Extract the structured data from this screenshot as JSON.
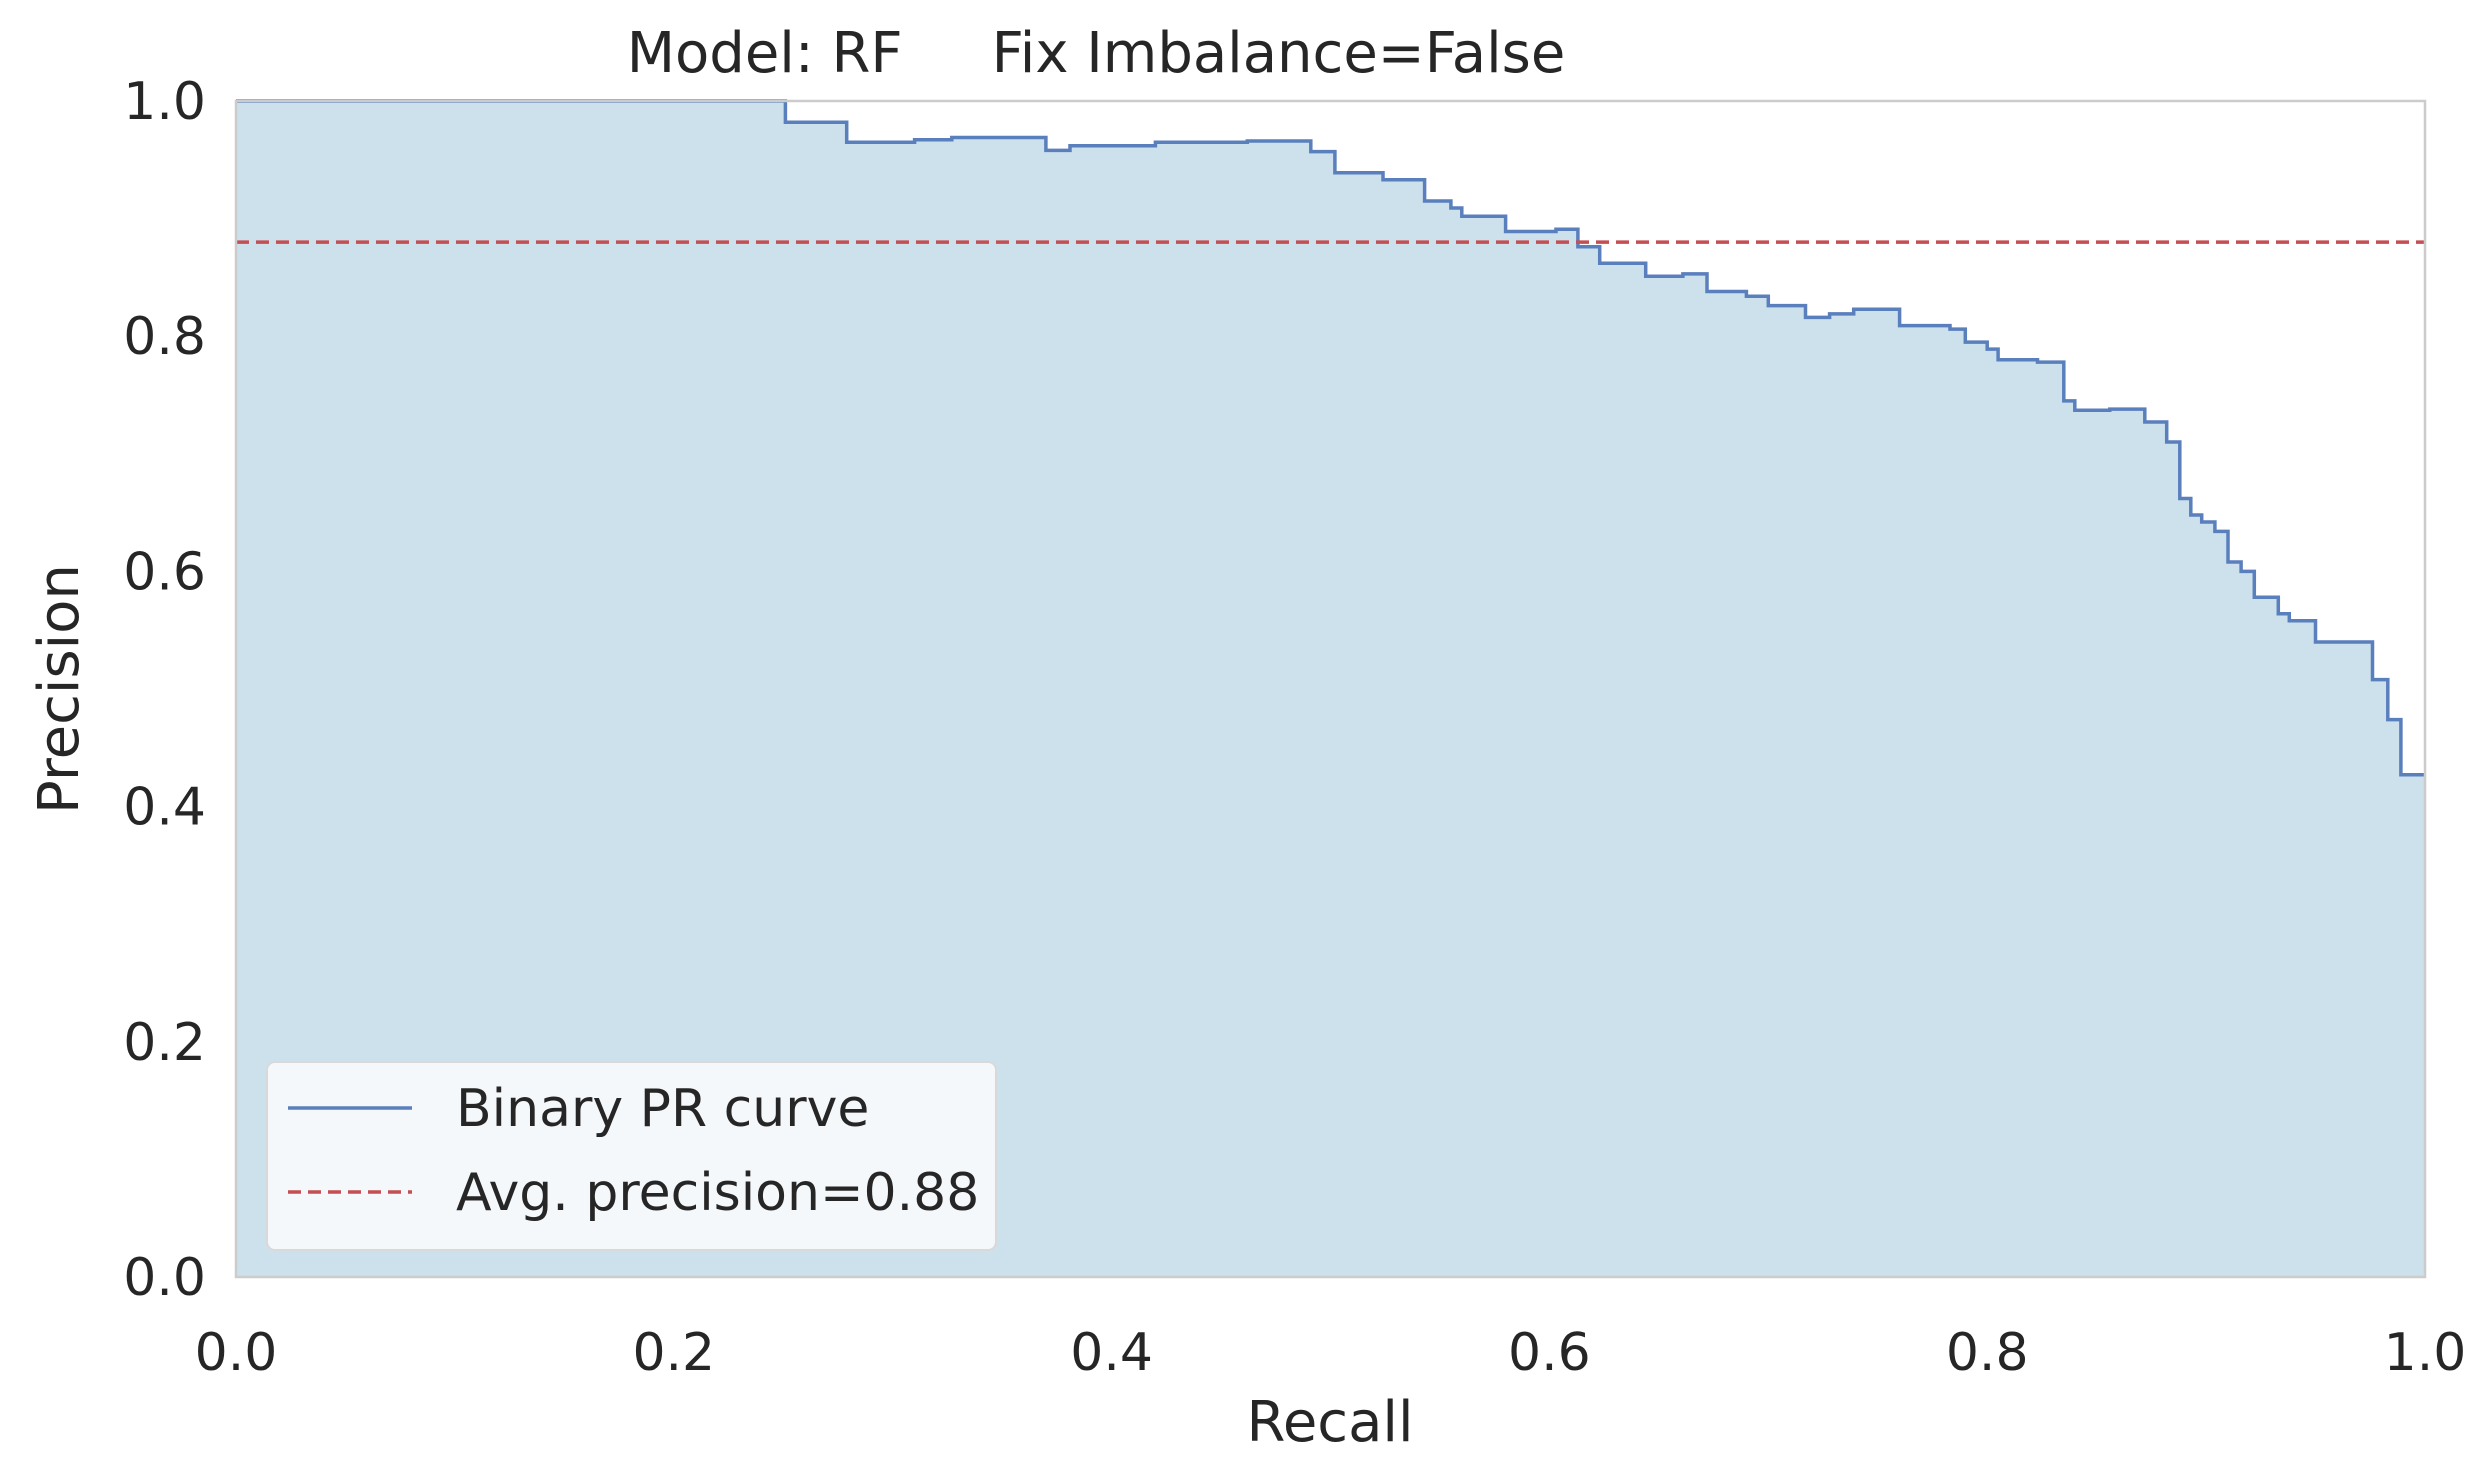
{
  "chart_data": {
    "type": "line",
    "title": "Model: RF     Fix Imbalance=False",
    "xlabel": "Recall",
    "ylabel": "Precision",
    "xlim": [
      0.0,
      1.0
    ],
    "ylim": [
      0.0,
      1.0
    ],
    "grid": false,
    "legend_position": "lower-left",
    "xticks": [
      "0.0",
      "0.2",
      "0.4",
      "0.6",
      "0.8",
      "1.0"
    ],
    "yticks": [
      "0.0",
      "0.2",
      "0.4",
      "0.6",
      "0.8",
      "1.0"
    ],
    "series": [
      {
        "name": "Binary PR curve",
        "style": "step-post",
        "color": "#5a7fbd",
        "fill_color": "#cce1ec",
        "points": [
          [
            0.0,
            1.0
          ],
          [
            0.251,
            1.0
          ],
          [
            0.251,
            0.982
          ],
          [
            0.279,
            0.982
          ],
          [
            0.279,
            0.965
          ],
          [
            0.31,
            0.965
          ],
          [
            0.31,
            0.967
          ],
          [
            0.327,
            0.967
          ],
          [
            0.327,
            0.969
          ],
          [
            0.37,
            0.969
          ],
          [
            0.37,
            0.958
          ],
          [
            0.381,
            0.958
          ],
          [
            0.381,
            0.962
          ],
          [
            0.42,
            0.962
          ],
          [
            0.42,
            0.965
          ],
          [
            0.462,
            0.965
          ],
          [
            0.462,
            0.966
          ],
          [
            0.491,
            0.966
          ],
          [
            0.491,
            0.957
          ],
          [
            0.502,
            0.957
          ],
          [
            0.502,
            0.939
          ],
          [
            0.524,
            0.939
          ],
          [
            0.524,
            0.933
          ],
          [
            0.543,
            0.933
          ],
          [
            0.543,
            0.915
          ],
          [
            0.555,
            0.915
          ],
          [
            0.555,
            0.909
          ],
          [
            0.56,
            0.909
          ],
          [
            0.56,
            0.902
          ],
          [
            0.58,
            0.902
          ],
          [
            0.58,
            0.889
          ],
          [
            0.603,
            0.889
          ],
          [
            0.603,
            0.891
          ],
          [
            0.613,
            0.891
          ],
          [
            0.613,
            0.876
          ],
          [
            0.623,
            0.876
          ],
          [
            0.623,
            0.862
          ],
          [
            0.644,
            0.862
          ],
          [
            0.644,
            0.851
          ],
          [
            0.661,
            0.851
          ],
          [
            0.661,
            0.853
          ],
          [
            0.672,
            0.853
          ],
          [
            0.672,
            0.838
          ],
          [
            0.69,
            0.838
          ],
          [
            0.69,
            0.834
          ],
          [
            0.7,
            0.834
          ],
          [
            0.7,
            0.826
          ],
          [
            0.717,
            0.826
          ],
          [
            0.717,
            0.816
          ],
          [
            0.728,
            0.816
          ],
          [
            0.728,
            0.819
          ],
          [
            0.739,
            0.819
          ],
          [
            0.739,
            0.823
          ],
          [
            0.76,
            0.823
          ],
          [
            0.76,
            0.809
          ],
          [
            0.783,
            0.809
          ],
          [
            0.783,
            0.806
          ],
          [
            0.79,
            0.806
          ],
          [
            0.79,
            0.795
          ],
          [
            0.8,
            0.795
          ],
          [
            0.8,
            0.789
          ],
          [
            0.805,
            0.789
          ],
          [
            0.805,
            0.78
          ],
          [
            0.823,
            0.78
          ],
          [
            0.823,
            0.778
          ],
          [
            0.835,
            0.778
          ],
          [
            0.835,
            0.745
          ],
          [
            0.84,
            0.745
          ],
          [
            0.84,
            0.737
          ],
          [
            0.856,
            0.737
          ],
          [
            0.856,
            0.738
          ],
          [
            0.872,
            0.738
          ],
          [
            0.872,
            0.727
          ],
          [
            0.882,
            0.727
          ],
          [
            0.882,
            0.71
          ],
          [
            0.888,
            0.71
          ],
          [
            0.888,
            0.662
          ],
          [
            0.893,
            0.662
          ],
          [
            0.893,
            0.648
          ],
          [
            0.898,
            0.648
          ],
          [
            0.898,
            0.642
          ],
          [
            0.904,
            0.642
          ],
          [
            0.904,
            0.634
          ],
          [
            0.91,
            0.634
          ],
          [
            0.91,
            0.608
          ],
          [
            0.916,
            0.608
          ],
          [
            0.916,
            0.6
          ],
          [
            0.922,
            0.6
          ],
          [
            0.922,
            0.578
          ],
          [
            0.933,
            0.578
          ],
          [
            0.933,
            0.564
          ],
          [
            0.938,
            0.564
          ],
          [
            0.938,
            0.558
          ],
          [
            0.95,
            0.558
          ],
          [
            0.95,
            0.54
          ],
          [
            0.976,
            0.54
          ],
          [
            0.976,
            0.508
          ],
          [
            0.983,
            0.508
          ],
          [
            0.983,
            0.474
          ],
          [
            0.989,
            0.474
          ],
          [
            0.989,
            0.427
          ],
          [
            1.0,
            0.427
          ]
        ]
      },
      {
        "name": "Avg. precision=0.88",
        "style": "dashed",
        "color": "#c44e52",
        "y": 0.88
      }
    ]
  }
}
